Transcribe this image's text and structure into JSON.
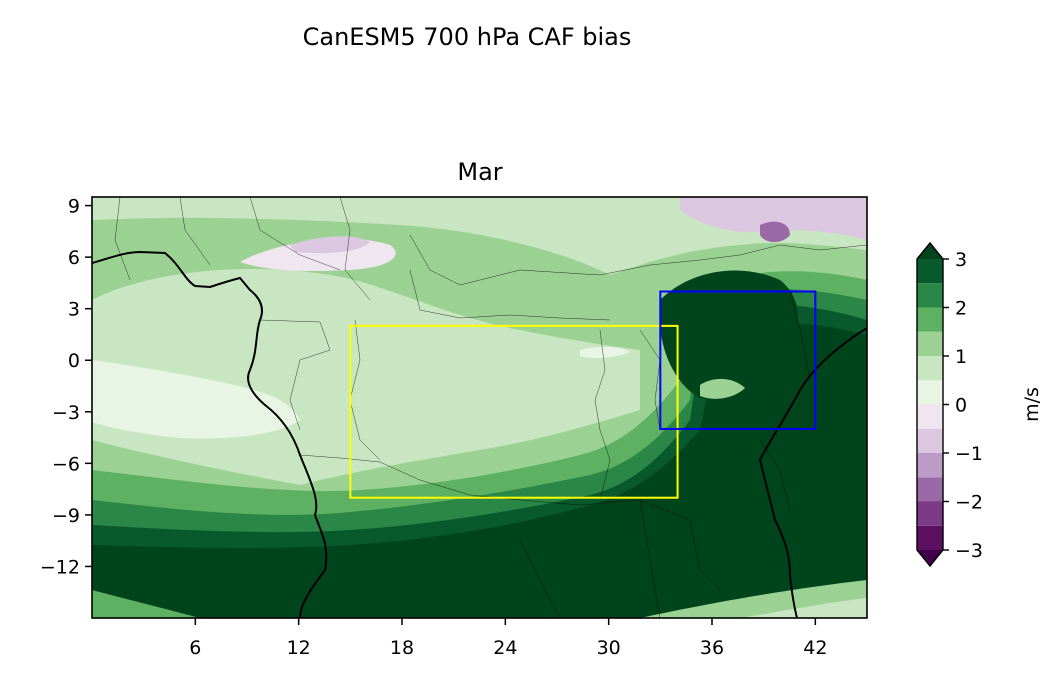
{
  "figure": {
    "suptitle": "CanESM5 700 hPa CAF bias"
  },
  "chart_data": {
    "type": "heatmap",
    "subtype": "filled-contour map",
    "panel_title": "Mar",
    "xlim": [
      0,
      45
    ],
    "ylim": [
      -15,
      9.5
    ],
    "x_ticks": [
      6,
      12,
      18,
      24,
      30,
      36,
      42
    ],
    "x_tick_labels": [
      "6",
      "12",
      "18",
      "24",
      "30",
      "36",
      "42"
    ],
    "y_ticks": [
      9,
      6,
      3,
      0,
      -3,
      -6,
      -9,
      -12
    ],
    "y_tick_labels": [
      "9",
      "6",
      "3",
      "0",
      "−3",
      "−6",
      "−9",
      "−12"
    ],
    "colorbar": {
      "label": "m/s",
      "ticks": [
        3,
        2,
        1,
        0,
        -1,
        -2,
        -3
      ],
      "tick_labels": [
        "3",
        "2",
        "1",
        "0",
        "−1",
        "−2",
        "−3"
      ],
      "levels": [
        -3,
        -2.5,
        -2,
        -1.5,
        -1,
        -0.5,
        0,
        0.5,
        1,
        1.5,
        2,
        2.5,
        3
      ],
      "colors": [
        "#5a0f5f",
        "#7b3a85",
        "#9a6aa6",
        "#bc9bc6",
        "#dcc7e0",
        "#efe6f0",
        "#e8f4e4",
        "#c8e6c1",
        "#9bd293",
        "#5eb162",
        "#2a8747",
        "#085a2c"
      ],
      "extend": "both",
      "under_color": "#40004b",
      "over_color": "#00441b"
    },
    "boxes": [
      {
        "color": "#ffff00",
        "lon": [
          15,
          34
        ],
        "lat": [
          -8,
          2
        ]
      },
      {
        "color": "#0000ff",
        "lon": [
          33,
          42
        ],
        "lat": [
          -4,
          4
        ]
      }
    ],
    "coastline_color": "#000000",
    "border_color": "#000000"
  }
}
